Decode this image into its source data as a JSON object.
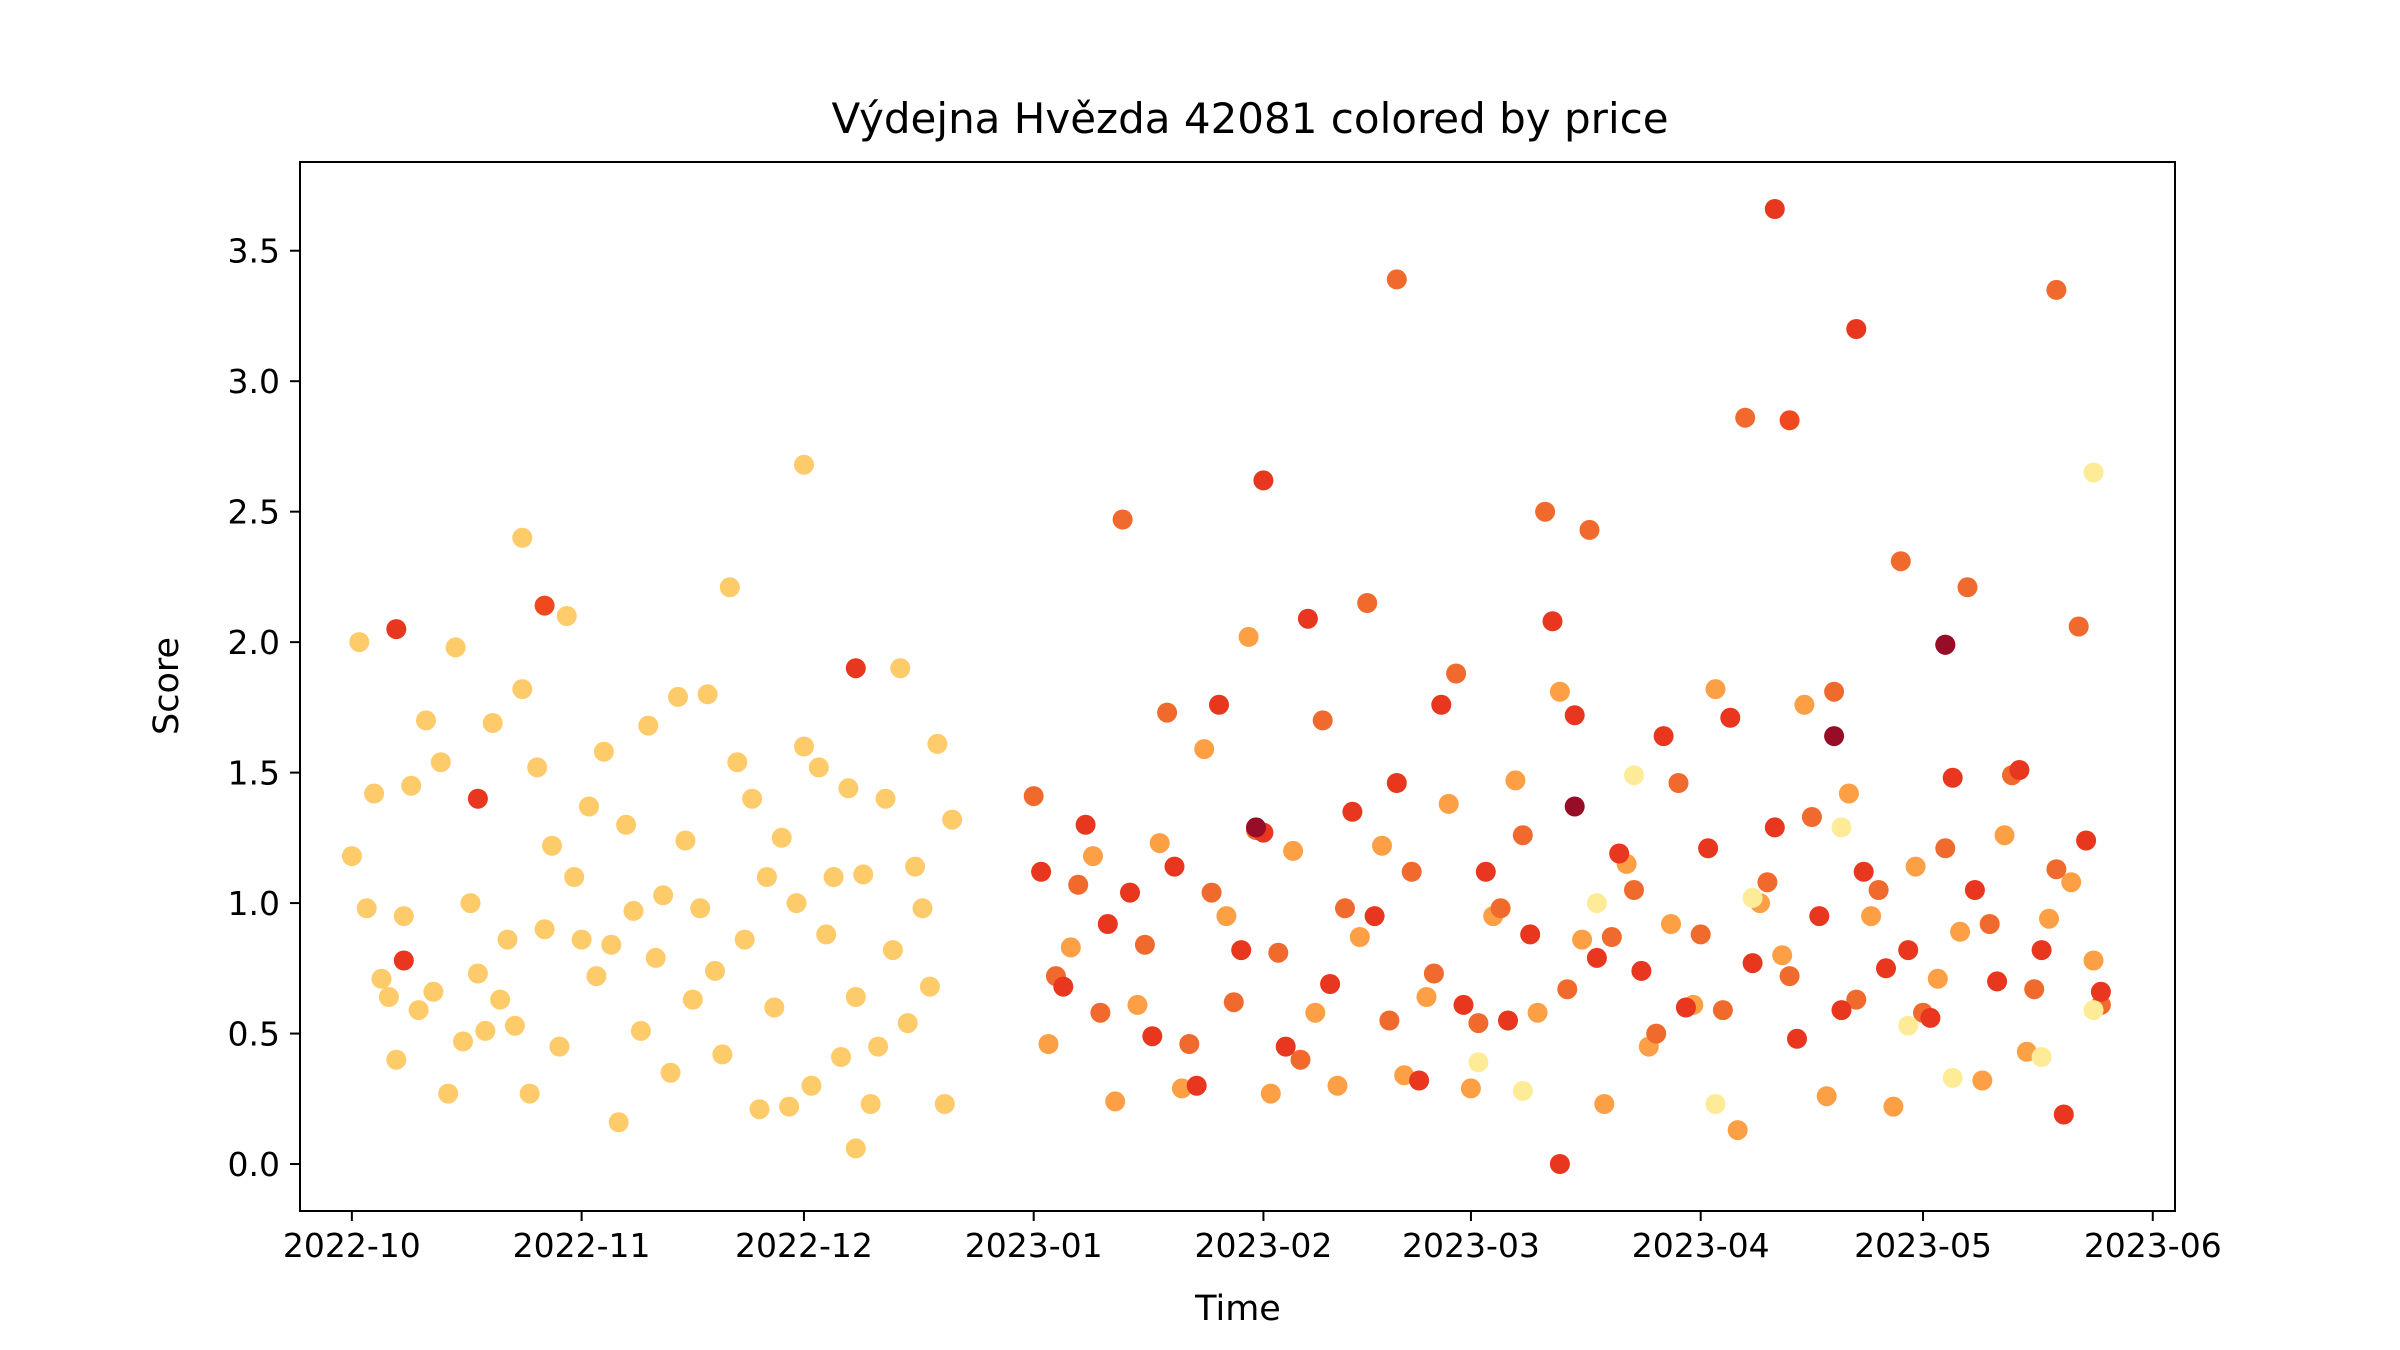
{
  "chart_data": {
    "type": "scatter",
    "title": "Výdejna Hvězda 42081 colored by price",
    "xlabel": "Time",
    "ylabel": "Score",
    "x_axis_type": "date",
    "xlim": [
      "2022-09-24",
      "2023-06-04"
    ],
    "ylim": [
      -0.18,
      3.84
    ],
    "grid": false,
    "colormap": "YlOrRd",
    "colorbar": false,
    "x_ticks": [
      "2022-10-01",
      "2022-11-01",
      "2022-12-01",
      "2023-01-01",
      "2023-02-01",
      "2023-03-01",
      "2023-04-01",
      "2023-05-01",
      "2023-06-01"
    ],
    "x_tick_labels": [
      "2022-10",
      "2022-11",
      "2022-12",
      "2023-01",
      "2023-02",
      "2023-03",
      "2023-04",
      "2023-05",
      "2023-06"
    ],
    "y_ticks": [
      0.0,
      0.5,
      1.0,
      1.5,
      2.0,
      2.5,
      3.0,
      3.5
    ],
    "y_tick_labels": [
      "0.0",
      "0.5",
      "1.0",
      "1.5",
      "2.0",
      "2.5",
      "3.0",
      "3.5"
    ],
    "notable_points": [
      {
        "x": "2022-10-07",
        "y": 2.05,
        "color": "#e8361f"
      },
      {
        "x": "2022-10-08",
        "y": 0.78,
        "color": "#e8361f"
      },
      {
        "x": "2022-10-18",
        "y": 1.4,
        "color": "#e8361f"
      },
      {
        "x": "2022-10-24",
        "y": 2.4,
        "color": "#fecb6b"
      },
      {
        "x": "2022-10-27",
        "y": 2.14,
        "color": "#f0481f"
      },
      {
        "x": "2022-12-01",
        "y": 2.68,
        "color": "#fecb6b"
      },
      {
        "x": "2022-12-08",
        "y": 1.9,
        "color": "#e8361f"
      },
      {
        "x": "2022-12-08",
        "y": 0.06,
        "color": "#fecb6b"
      },
      {
        "x": "2023-02-01",
        "y": 2.62,
        "color": "#e8361f"
      },
      {
        "x": "2023-02-19",
        "y": 3.39,
        "color": "#f16a2d"
      },
      {
        "x": "2023-03-13",
        "y": 0.0,
        "color": "#e8361f"
      },
      {
        "x": "2023-04-11",
        "y": 3.66,
        "color": "#e8361f"
      },
      {
        "x": "2023-04-13",
        "y": 2.85,
        "color": "#f0481f"
      },
      {
        "x": "2023-04-22",
        "y": 3.2,
        "color": "#e8361f"
      },
      {
        "x": "2023-05-04",
        "y": 1.99,
        "color": "#970c26"
      },
      {
        "x": "2023-05-19",
        "y": 3.35,
        "color": "#f16a2d"
      },
      {
        "x": "2023-05-24",
        "y": 2.65,
        "color": "#feeb98"
      }
    ],
    "series": [
      {
        "color_group": "price-low",
        "color": "#fecb6b",
        "x": [
          "2022-10-01",
          "2022-10-02",
          "2022-10-03",
          "2022-10-04",
          "2022-10-05",
          "2022-10-06",
          "2022-10-07",
          "2022-10-08",
          "2022-10-09",
          "2022-10-10",
          "2022-10-11",
          "2022-10-12",
          "2022-10-13",
          "2022-10-14",
          "2022-10-15",
          "2022-10-16",
          "2022-10-17",
          "2022-10-18",
          "2022-10-19",
          "2022-10-20",
          "2022-10-21",
          "2022-10-22",
          "2022-10-23",
          "2022-10-24",
          "2022-10-25",
          "2022-10-26",
          "2022-10-27",
          "2022-10-28",
          "2022-10-29",
          "2022-10-30",
          "2022-10-31",
          "2022-11-01",
          "2022-11-02",
          "2022-11-03",
          "2022-11-04",
          "2022-11-05",
          "2022-11-06",
          "2022-11-07",
          "2022-11-08",
          "2022-11-09",
          "2022-11-10",
          "2022-11-11",
          "2022-11-12",
          "2022-11-13",
          "2022-11-14",
          "2022-11-15",
          "2022-11-16",
          "2022-11-17",
          "2022-11-18",
          "2022-11-19",
          "2022-11-20",
          "2022-11-21",
          "2022-11-22",
          "2022-11-23",
          "2022-11-24",
          "2022-11-25",
          "2022-11-26",
          "2022-11-27",
          "2022-11-28",
          "2022-11-29",
          "2022-11-30",
          "2022-12-01",
          "2022-12-02",
          "2022-12-03",
          "2022-12-04",
          "2022-12-05",
          "2022-12-06",
          "2022-12-07",
          "2022-12-08",
          "2022-12-09",
          "2022-12-10",
          "2022-12-11",
          "2022-12-12",
          "2022-12-13",
          "2022-12-14",
          "2022-12-15",
          "2022-12-16",
          "2022-12-17",
          "2022-12-18",
          "2022-12-19",
          "2022-12-20",
          "2022-12-21"
        ],
        "y": [
          1.18,
          2.0,
          0.98,
          1.42,
          0.71,
          0.64,
          0.4,
          0.95,
          1.45,
          0.59,
          1.7,
          0.66,
          1.54,
          0.27,
          1.98,
          0.47,
          1.0,
          0.73,
          0.51,
          1.69,
          0.63,
          0.86,
          0.53,
          1.82,
          0.27,
          1.52,
          0.9,
          1.22,
          0.45,
          2.1,
          1.1,
          0.86,
          1.37,
          0.72,
          1.58,
          0.84,
          0.16,
          1.3,
          0.97,
          0.51,
          1.68,
          0.79,
          1.03,
          0.35,
          1.79,
          1.24,
          0.63,
          0.98,
          1.8,
          0.74,
          0.42,
          2.21,
          1.54,
          0.86,
          1.4,
          0.21,
          1.1,
          0.6,
          1.25,
          0.22,
          1.0,
          1.6,
          0.3,
          1.52,
          0.88,
          1.1,
          0.41,
          1.44,
          0.64,
          1.11,
          0.23,
          0.45,
          1.4,
          0.82,
          1.9,
          0.54,
          1.14,
          0.98,
          0.68,
          1.61,
          0.23,
          1.32
        ]
      },
      {
        "color_group": "price-mid",
        "color": "#fd9f44",
        "x": [
          "2023-01-03",
          "2023-01-06",
          "2023-01-09",
          "2023-01-12",
          "2023-01-15",
          "2023-01-18",
          "2023-01-21",
          "2023-01-24",
          "2023-01-27",
          "2023-01-30",
          "2023-02-02",
          "2023-02-05",
          "2023-02-08",
          "2023-02-11",
          "2023-02-14",
          "2023-02-17",
          "2023-02-20",
          "2023-02-23",
          "2023-02-26",
          "2023-03-01",
          "2023-03-04",
          "2023-03-07",
          "2023-03-10",
          "2023-03-13",
          "2023-03-16",
          "2023-03-19",
          "2023-03-22",
          "2023-03-25",
          "2023-03-28",
          "2023-03-31",
          "2023-04-03",
          "2023-04-06",
          "2023-04-09",
          "2023-04-12",
          "2023-04-15",
          "2023-04-18",
          "2023-04-21",
          "2023-04-24",
          "2023-04-27",
          "2023-04-30",
          "2023-05-03",
          "2023-05-06",
          "2023-05-09",
          "2023-05-12",
          "2023-05-15",
          "2023-05-18",
          "2023-05-21",
          "2023-05-24"
        ],
        "y": [
          0.46,
          0.83,
          1.18,
          0.24,
          0.61,
          1.23,
          0.29,
          1.59,
          0.95,
          2.02,
          0.27,
          1.2,
          0.58,
          0.3,
          0.87,
          1.22,
          0.34,
          0.64,
          1.38,
          0.29,
          0.95,
          1.47,
          0.58,
          1.81,
          0.86,
          0.23,
          1.15,
          0.45,
          0.92,
          0.61,
          1.82,
          0.13,
          1.0,
          0.8,
          1.76,
          0.26,
          1.42,
          0.95,
          0.22,
          1.14,
          0.71,
          0.89,
          0.32,
          1.26,
          0.43,
          0.94,
          1.08,
          0.78
        ]
      },
      {
        "color_group": "price-high",
        "color": "#f16a2d",
        "x": [
          "2023-01-01",
          "2023-01-04",
          "2023-01-07",
          "2023-01-10",
          "2023-01-13",
          "2023-01-16",
          "2023-01-19",
          "2023-01-22",
          "2023-01-25",
          "2023-01-28",
          "2023-01-31",
          "2023-02-03",
          "2023-02-06",
          "2023-02-09",
          "2023-02-12",
          "2023-02-15",
          "2023-02-18",
          "2023-02-21",
          "2023-02-24",
          "2023-02-27",
          "2023-03-02",
          "2023-03-05",
          "2023-03-08",
          "2023-03-11",
          "2023-03-14",
          "2023-03-17",
          "2023-03-20",
          "2023-03-23",
          "2023-03-26",
          "2023-03-29",
          "2023-04-01",
          "2023-04-04",
          "2023-04-07",
          "2023-04-10",
          "2023-04-13",
          "2023-04-16",
          "2023-04-19",
          "2023-04-22",
          "2023-04-25",
          "2023-04-28",
          "2023-05-01",
          "2023-05-04",
          "2023-05-07",
          "2023-05-10",
          "2023-05-13",
          "2023-05-16",
          "2023-05-19",
          "2023-05-22",
          "2023-05-25"
        ],
        "y": [
          1.41,
          0.72,
          1.07,
          0.58,
          2.47,
          0.84,
          1.73,
          0.46,
          1.04,
          0.62,
          1.28,
          0.81,
          0.4,
          1.7,
          0.98,
          2.15,
          0.55,
          1.12,
          0.73,
          1.88,
          0.54,
          0.98,
          1.26,
          2.5,
          0.67,
          2.43,
          0.87,
          1.05,
          0.5,
          1.46,
          0.88,
          0.59,
          2.86,
          1.08,
          0.72,
          1.33,
          1.81,
          0.63,
          1.05,
          2.31,
          0.58,
          1.21,
          2.21,
          0.92,
          1.49,
          0.67,
          1.13,
          2.06,
          0.61
        ]
      },
      {
        "color_group": "price-higher",
        "color": "#e8361f",
        "x": [
          "2023-01-02",
          "2023-01-05",
          "2023-01-08",
          "2023-01-11",
          "2023-01-14",
          "2023-01-17",
          "2023-01-20",
          "2023-01-23",
          "2023-01-26",
          "2023-01-29",
          "2023-02-01",
          "2023-02-04",
          "2023-02-07",
          "2023-02-10",
          "2023-02-13",
          "2023-02-16",
          "2023-02-19",
          "2023-02-22",
          "2023-02-25",
          "2023-02-28",
          "2023-03-03",
          "2023-03-06",
          "2023-03-09",
          "2023-03-12",
          "2023-03-15",
          "2023-03-18",
          "2023-03-21",
          "2023-03-24",
          "2023-03-27",
          "2023-03-30",
          "2023-04-02",
          "2023-04-05",
          "2023-04-08",
          "2023-04-11",
          "2023-04-14",
          "2023-04-17",
          "2023-04-20",
          "2023-04-23",
          "2023-04-26",
          "2023-04-29",
          "2023-05-02",
          "2023-05-05",
          "2023-05-08",
          "2023-05-11",
          "2023-05-14",
          "2023-05-17",
          "2023-05-20",
          "2023-05-23",
          "2023-05-25"
        ],
        "y": [
          1.12,
          0.68,
          1.3,
          0.92,
          1.04,
          0.49,
          1.14,
          0.3,
          1.76,
          0.82,
          1.27,
          0.45,
          2.09,
          0.69,
          1.35,
          0.95,
          1.46,
          0.32,
          1.76,
          0.61,
          1.12,
          0.55,
          0.88,
          2.08,
          1.72,
          0.79,
          1.19,
          0.74,
          1.64,
          0.6,
          1.21,
          1.71,
          0.77,
          1.29,
          0.48,
          0.95,
          0.59,
          1.12,
          0.75,
          0.82,
          0.56,
          1.48,
          1.05,
          0.7,
          1.51,
          0.82,
          0.19,
          1.24,
          0.66
        ]
      },
      {
        "color_group": "price-top",
        "color": "#970c26",
        "x": [
          "2023-01-31",
          "2023-03-15",
          "2023-04-19",
          "2023-05-04"
        ],
        "y": [
          1.29,
          1.37,
          1.64,
          1.99
        ]
      },
      {
        "color_group": "price-lowest",
        "color": "#feeb98",
        "x": [
          "2023-03-02",
          "2023-03-08",
          "2023-03-18",
          "2023-03-23",
          "2023-04-03",
          "2023-04-08",
          "2023-04-20",
          "2023-04-29",
          "2023-05-05",
          "2023-05-17",
          "2023-05-24"
        ],
        "y": [
          0.39,
          0.28,
          1.0,
          1.49,
          0.23,
          1.02,
          1.29,
          0.53,
          0.33,
          0.41,
          0.59
        ]
      }
    ]
  }
}
